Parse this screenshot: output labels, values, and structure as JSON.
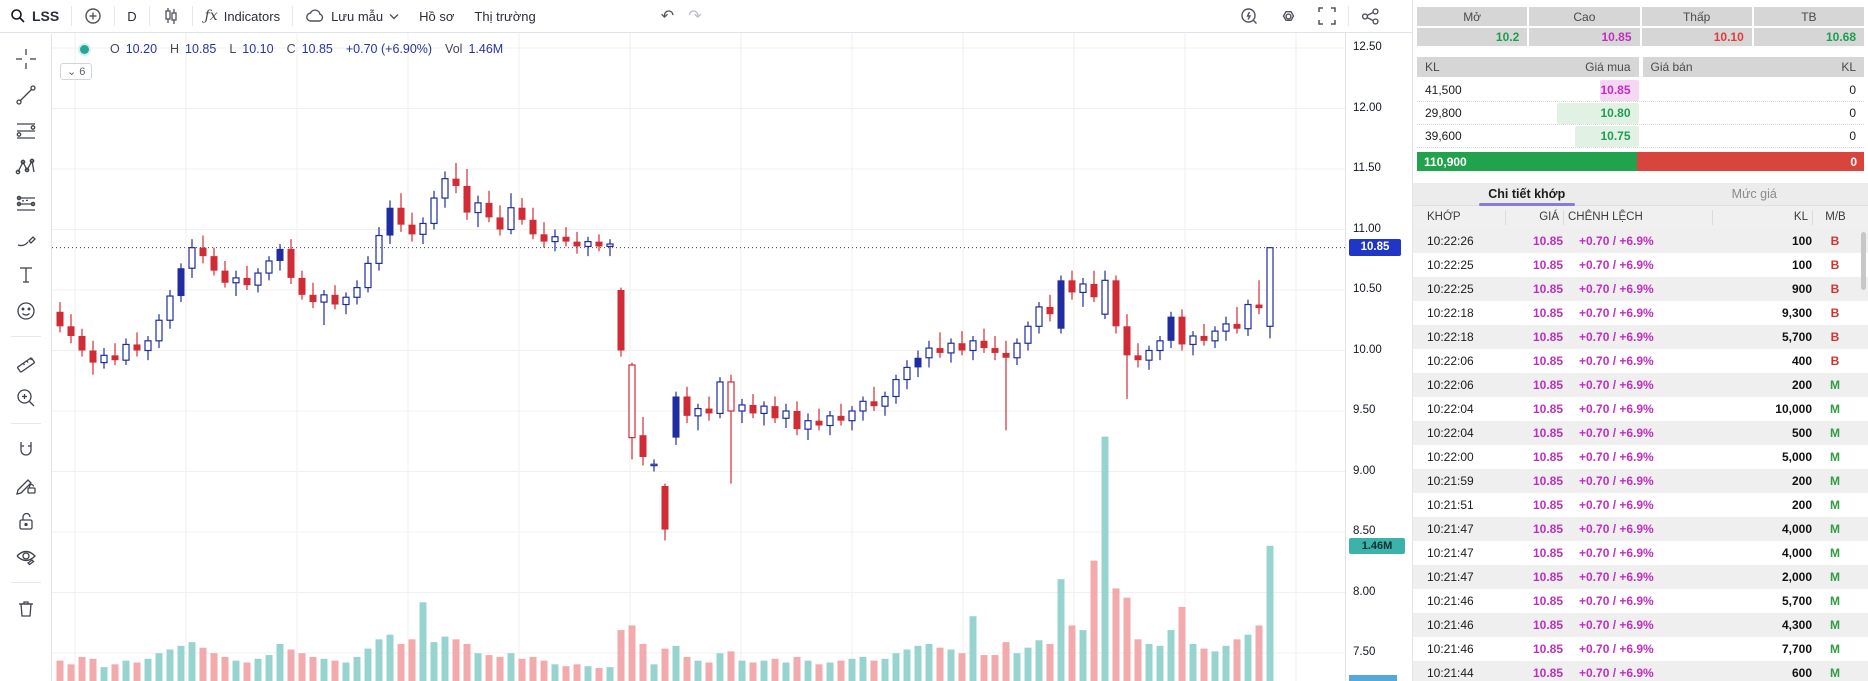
{
  "toolbar": {
    "symbol": "LSS",
    "interval": "D",
    "indicators_label": "Indicators",
    "template_label": "Lưu mẫu",
    "profile_label": "Hồ sơ",
    "market_label": "Thị trường",
    "undo_glyph": "↶",
    "redo_glyph": "↷"
  },
  "legend": {
    "open_label": "O",
    "open": "10.20",
    "high_label": "H",
    "high": "10.85",
    "low_label": "L",
    "low": "10.10",
    "close_label": "C",
    "close": "10.85",
    "change": "+0.70 (+6.90%)",
    "volume_label": "Vol",
    "volume": "1.46M",
    "collapsed_count": "6",
    "collapse_chevron": "⌄"
  },
  "drawbar_icons": [
    "crosshair",
    "trend-line",
    "fib-retracement",
    "xabcd-pattern",
    "projection",
    "brush",
    "text",
    "emoji",
    "ruler",
    "zoom-in",
    "magnet",
    "drawing-mode-lock",
    "lock",
    "hide-drawings",
    "remove-drawings"
  ],
  "price_axis": {
    "ticks": [
      "12.50",
      "12.00",
      "11.50",
      "11.00",
      "10.50",
      "10.00",
      "9.50",
      "9.00",
      "8.50",
      "8.00",
      "7.50"
    ],
    "last_price_badge": "10.85",
    "volume_badge": "1.46M"
  },
  "summary": {
    "columns": [
      {
        "label": "Mở",
        "value": "10.2",
        "state": "up"
      },
      {
        "label": "Cao",
        "value": "10.85",
        "state": "ceiling"
      },
      {
        "label": "Thấp",
        "value": "10.10",
        "state": "down"
      },
      {
        "label": "TB",
        "value": "10.68",
        "state": "up"
      }
    ]
  },
  "order_book": {
    "headers": [
      "KL",
      "Giá mua",
      "Giá bán",
      "KL"
    ],
    "bids": [
      {
        "volume": "41,500",
        "price": "10.85",
        "state": "ceiling"
      },
      {
        "volume": "29,800",
        "price": "10.80",
        "state": "up"
      },
      {
        "volume": "39,600",
        "price": "10.75",
        "state": "up"
      }
    ],
    "asks": [
      {
        "price": "",
        "volume": "0"
      },
      {
        "price": "",
        "volume": "0"
      },
      {
        "price": "",
        "volume": "0"
      }
    ],
    "total_bid": "110,900",
    "total_ask": "0"
  },
  "tabs": {
    "trade_detail": "Chi tiết khớp",
    "price_level": "Mức giá"
  },
  "trades": {
    "headers": [
      "KHỚP",
      "GIÁ",
      "CHÊNH LỆCH",
      "KL",
      "M/B"
    ],
    "rows": [
      {
        "time": "10:22:26",
        "price": "10.85",
        "change": "+0.70 / +6.9%",
        "volume": "100",
        "side": "B"
      },
      {
        "time": "10:22:25",
        "price": "10.85",
        "change": "+0.70 / +6.9%",
        "volume": "100",
        "side": "B"
      },
      {
        "time": "10:22:25",
        "price": "10.85",
        "change": "+0.70 / +6.9%",
        "volume": "900",
        "side": "B"
      },
      {
        "time": "10:22:18",
        "price": "10.85",
        "change": "+0.70 / +6.9%",
        "volume": "9,300",
        "side": "B"
      },
      {
        "time": "10:22:18",
        "price": "10.85",
        "change": "+0.70 / +6.9%",
        "volume": "5,700",
        "side": "B"
      },
      {
        "time": "10:22:06",
        "price": "10.85",
        "change": "+0.70 / +6.9%",
        "volume": "400",
        "side": "B"
      },
      {
        "time": "10:22:06",
        "price": "10.85",
        "change": "+0.70 / +6.9%",
        "volume": "200",
        "side": "M"
      },
      {
        "time": "10:22:04",
        "price": "10.85",
        "change": "+0.70 / +6.9%",
        "volume": "10,000",
        "side": "M"
      },
      {
        "time": "10:22:04",
        "price": "10.85",
        "change": "+0.70 / +6.9%",
        "volume": "500",
        "side": "M"
      },
      {
        "time": "10:22:00",
        "price": "10.85",
        "change": "+0.70 / +6.9%",
        "volume": "5,000",
        "side": "M"
      },
      {
        "time": "10:21:59",
        "price": "10.85",
        "change": "+0.70 / +6.9%",
        "volume": "200",
        "side": "M"
      },
      {
        "time": "10:21:51",
        "price": "10.85",
        "change": "+0.70 / +6.9%",
        "volume": "200",
        "side": "M"
      },
      {
        "time": "10:21:47",
        "price": "10.85",
        "change": "+0.70 / +6.9%",
        "volume": "4,000",
        "side": "M"
      },
      {
        "time": "10:21:47",
        "price": "10.85",
        "change": "+0.70 / +6.9%",
        "volume": "4,000",
        "side": "M"
      },
      {
        "time": "10:21:47",
        "price": "10.85",
        "change": "+0.70 / +6.9%",
        "volume": "2,000",
        "side": "M"
      },
      {
        "time": "10:21:46",
        "price": "10.85",
        "change": "+0.70 / +6.9%",
        "volume": "5,700",
        "side": "M"
      },
      {
        "time": "10:21:46",
        "price": "10.85",
        "change": "+0.70 / +6.9%",
        "volume": "4,300",
        "side": "M"
      },
      {
        "time": "10:21:46",
        "price": "10.85",
        "change": "+0.70 / +6.9%",
        "volume": "7,700",
        "side": "M"
      },
      {
        "time": "10:21:44",
        "price": "10.85",
        "change": "+0.70 / +6.9%",
        "volume": "600",
        "side": "M"
      }
    ]
  },
  "colors": {
    "candle_up": "#202da0",
    "candle_down": "#d12b35",
    "volume_up": "#8fd0cb",
    "volume_down": "#f2a3a6",
    "price_badge": "#1f36c7",
    "volume_badge_bg": "#3cb3aa",
    "volume_badge_text": "#0e2f33",
    "ceiling_magenta": "#c02ec0",
    "up_green": "#1f9d50",
    "down_red": "#e23b3b",
    "buy_red": "#d0342c",
    "sell_green": "#2f9e44",
    "depth_bid": "#21a24d",
    "depth_ask": "#d8453c",
    "grid": "#f0f0f0",
    "vgrid": "#f3efec",
    "last_price_line": "#40444d"
  },
  "chart_data": {
    "type": "candlestick+volume",
    "title": "LSS daily price chart with volume",
    "interval": "D",
    "price_axis_range": [
      7.5,
      12.5
    ],
    "price_ticks": [
      12.5,
      12.0,
      11.5,
      11.0,
      10.5,
      10.0,
      9.5,
      9.0,
      8.5,
      8.0,
      7.5
    ],
    "last_price": 10.85,
    "last_volume": 1.46,
    "volume_unit": "M shares",
    "volume_max": 2.7,
    "bar_spacing": 11,
    "grid": true,
    "candles_format": "[open, high, low, close, volume_M, solid_body]",
    "candles": [
      [
        10.32,
        10.4,
        10.15,
        10.2,
        0.22,
        1
      ],
      [
        10.2,
        10.3,
        10.06,
        10.12,
        0.18,
        1
      ],
      [
        10.12,
        10.18,
        9.95,
        10.0,
        0.26,
        1
      ],
      [
        10.0,
        10.08,
        9.8,
        9.9,
        0.24,
        1
      ],
      [
        9.9,
        10.02,
        9.85,
        9.96,
        0.15,
        0
      ],
      [
        9.96,
        10.06,
        9.88,
        9.92,
        0.18,
        1
      ],
      [
        9.92,
        10.1,
        9.88,
        10.05,
        0.22,
        0
      ],
      [
        10.05,
        10.15,
        9.95,
        10.0,
        0.2,
        1
      ],
      [
        10.0,
        10.12,
        9.92,
        10.08,
        0.24,
        0
      ],
      [
        10.08,
        10.3,
        10.02,
        10.25,
        0.3,
        0
      ],
      [
        10.25,
        10.5,
        10.18,
        10.45,
        0.34,
        0
      ],
      [
        10.45,
        10.72,
        10.4,
        10.68,
        0.38,
        1
      ],
      [
        10.68,
        10.92,
        10.6,
        10.85,
        0.42,
        0
      ],
      [
        10.85,
        10.95,
        10.72,
        10.78,
        0.36,
        1
      ],
      [
        10.78,
        10.85,
        10.62,
        10.66,
        0.3,
        1
      ],
      [
        10.66,
        10.74,
        10.52,
        10.56,
        0.26,
        1
      ],
      [
        10.56,
        10.66,
        10.45,
        10.6,
        0.22,
        0
      ],
      [
        10.6,
        10.7,
        10.5,
        10.54,
        0.2,
        1
      ],
      [
        10.54,
        10.68,
        10.48,
        10.64,
        0.24,
        0
      ],
      [
        10.64,
        10.78,
        10.58,
        10.74,
        0.28,
        0
      ],
      [
        10.74,
        10.88,
        10.66,
        10.84,
        0.4,
        1
      ],
      [
        10.84,
        10.92,
        10.55,
        10.6,
        0.34,
        1
      ],
      [
        10.6,
        10.66,
        10.42,
        10.46,
        0.3,
        1
      ],
      [
        10.46,
        10.56,
        10.35,
        10.4,
        0.26,
        1
      ],
      [
        10.4,
        10.5,
        10.21,
        10.46,
        0.24,
        0
      ],
      [
        10.46,
        10.54,
        10.34,
        10.38,
        0.22,
        1
      ],
      [
        10.38,
        10.48,
        10.3,
        10.44,
        0.2,
        0
      ],
      [
        10.44,
        10.58,
        10.38,
        10.52,
        0.26,
        0
      ],
      [
        10.52,
        10.78,
        10.48,
        10.72,
        0.35,
        0
      ],
      [
        10.72,
        11.02,
        10.66,
        10.95,
        0.45,
        0
      ],
      [
        10.95,
        11.24,
        10.88,
        11.18,
        0.5,
        1
      ],
      [
        11.18,
        11.3,
        10.98,
        11.04,
        0.4,
        1
      ],
      [
        11.04,
        11.14,
        10.9,
        10.96,
        0.45,
        1
      ],
      [
        10.96,
        11.1,
        10.88,
        11.05,
        0.85,
        0
      ],
      [
        11.05,
        11.32,
        11.0,
        11.26,
        0.42,
        0
      ],
      [
        11.26,
        11.48,
        11.18,
        11.42,
        0.48,
        0
      ],
      [
        11.42,
        11.55,
        11.3,
        11.36,
        0.45,
        1
      ],
      [
        11.36,
        11.5,
        11.08,
        11.14,
        0.4,
        1
      ],
      [
        11.14,
        11.28,
        11.02,
        11.22,
        0.3,
        0
      ],
      [
        11.22,
        11.32,
        11.06,
        11.1,
        0.28,
        1
      ],
      [
        11.1,
        11.2,
        10.95,
        11.0,
        0.26,
        1
      ],
      [
        11.0,
        11.3,
        10.96,
        11.18,
        0.3,
        0
      ],
      [
        11.18,
        11.26,
        11.04,
        11.08,
        0.24,
        1
      ],
      [
        11.08,
        11.18,
        10.92,
        10.96,
        0.26,
        1
      ],
      [
        10.96,
        11.06,
        10.85,
        10.9,
        0.22,
        1
      ],
      [
        10.9,
        11.0,
        10.82,
        10.94,
        0.18,
        0
      ],
      [
        10.94,
        11.02,
        10.86,
        10.9,
        0.16,
        1
      ],
      [
        10.9,
        10.98,
        10.8,
        10.86,
        0.18,
        1
      ],
      [
        10.86,
        10.94,
        10.78,
        10.9,
        0.16,
        0
      ],
      [
        10.9,
        10.96,
        10.82,
        10.86,
        0.14,
        1
      ],
      [
        10.86,
        10.92,
        10.78,
        10.88,
        0.15,
        0
      ],
      [
        10.5,
        10.52,
        9.95,
        10.0,
        0.55,
        1
      ],
      [
        9.88,
        9.9,
        9.1,
        9.28,
        0.6,
        0
      ],
      [
        9.3,
        9.45,
        9.05,
        9.12,
        0.4,
        1
      ],
      [
        9.05,
        9.1,
        9.0,
        9.06,
        0.18,
        0
      ],
      [
        8.88,
        8.9,
        8.43,
        8.52,
        0.35,
        1
      ],
      [
        9.28,
        9.66,
        9.22,
        9.62,
        0.38,
        1
      ],
      [
        9.62,
        9.7,
        9.4,
        9.46,
        0.26,
        1
      ],
      [
        9.46,
        9.56,
        9.34,
        9.52,
        0.22,
        0
      ],
      [
        9.52,
        9.62,
        9.42,
        9.48,
        0.2,
        1
      ],
      [
        9.48,
        9.78,
        9.44,
        9.74,
        0.3,
        0
      ],
      [
        9.74,
        9.8,
        8.9,
        9.5,
        0.32,
        0
      ],
      [
        9.5,
        9.6,
        9.4,
        9.55,
        0.22,
        0
      ],
      [
        9.55,
        9.64,
        9.44,
        9.48,
        0.2,
        1
      ],
      [
        9.48,
        9.58,
        9.38,
        9.54,
        0.22,
        0
      ],
      [
        9.54,
        9.62,
        9.4,
        9.44,
        0.24,
        1
      ],
      [
        9.44,
        9.56,
        9.36,
        9.5,
        0.2,
        0
      ],
      [
        9.5,
        9.58,
        9.3,
        9.35,
        0.26,
        1
      ],
      [
        9.35,
        9.48,
        9.26,
        9.42,
        0.22,
        0
      ],
      [
        9.42,
        9.52,
        9.34,
        9.38,
        0.18,
        1
      ],
      [
        9.38,
        9.5,
        9.3,
        9.46,
        0.2,
        0
      ],
      [
        9.46,
        9.56,
        9.38,
        9.42,
        0.22,
        1
      ],
      [
        9.42,
        9.54,
        9.34,
        9.5,
        0.24,
        0
      ],
      [
        9.5,
        9.62,
        9.42,
        9.58,
        0.26,
        0
      ],
      [
        9.58,
        9.7,
        9.5,
        9.54,
        0.22,
        1
      ],
      [
        9.54,
        9.66,
        9.46,
        9.62,
        0.24,
        0
      ],
      [
        9.62,
        9.8,
        9.56,
        9.76,
        0.3,
        0
      ],
      [
        9.76,
        9.92,
        9.68,
        9.86,
        0.34,
        0
      ],
      [
        9.86,
        10.0,
        9.78,
        9.94,
        0.38,
        1
      ],
      [
        9.94,
        10.08,
        9.86,
        10.02,
        0.4,
        0
      ],
      [
        10.02,
        10.15,
        9.94,
        9.98,
        0.36,
        1
      ],
      [
        9.98,
        10.1,
        9.9,
        10.06,
        0.34,
        0
      ],
      [
        10.06,
        10.16,
        9.96,
        10.0,
        0.3,
        1
      ],
      [
        10.0,
        10.12,
        9.92,
        10.08,
        0.7,
        0
      ],
      [
        10.08,
        10.18,
        9.98,
        10.02,
        0.28,
        1
      ],
      [
        10.02,
        10.12,
        9.92,
        9.98,
        0.28,
        1
      ],
      [
        9.98,
        10.08,
        9.34,
        9.94,
        0.42,
        1
      ],
      [
        9.94,
        10.1,
        9.88,
        10.06,
        0.3,
        0
      ],
      [
        10.06,
        10.24,
        10.0,
        10.2,
        0.36,
        0
      ],
      [
        10.2,
        10.4,
        10.14,
        10.36,
        0.44,
        0
      ],
      [
        10.36,
        10.46,
        10.24,
        10.3,
        0.4,
        1
      ],
      [
        10.18,
        10.62,
        10.14,
        10.58,
        1.1,
        1
      ],
      [
        10.58,
        10.66,
        10.42,
        10.48,
        0.6,
        1
      ],
      [
        10.48,
        10.6,
        10.36,
        10.55,
        0.55,
        0
      ],
      [
        10.55,
        10.66,
        10.4,
        10.44,
        1.3,
        1
      ],
      [
        10.3,
        10.66,
        10.26,
        10.58,
        2.64,
        0
      ],
      [
        10.58,
        10.62,
        10.14,
        10.2,
        1.0,
        1
      ],
      [
        10.2,
        10.3,
        9.6,
        9.96,
        0.9,
        1
      ],
      [
        9.96,
        10.06,
        9.86,
        9.92,
        0.45,
        1
      ],
      [
        9.92,
        10.04,
        9.84,
        10.0,
        0.4,
        0
      ],
      [
        10.0,
        10.12,
        9.92,
        10.08,
        0.38,
        0
      ],
      [
        10.08,
        10.32,
        10.02,
        10.28,
        0.55,
        1
      ],
      [
        10.28,
        10.34,
        10.0,
        10.05,
        0.8,
        1
      ],
      [
        10.05,
        10.16,
        9.96,
        10.12,
        0.4,
        0
      ],
      [
        10.12,
        10.22,
        10.04,
        10.08,
        0.35,
        1
      ],
      [
        10.08,
        10.2,
        10.02,
        10.16,
        0.32,
        0
      ],
      [
        10.16,
        10.28,
        10.08,
        10.22,
        0.38,
        0
      ],
      [
        10.22,
        10.36,
        10.14,
        10.18,
        0.45,
        1
      ],
      [
        10.18,
        10.42,
        10.12,
        10.38,
        0.5,
        0
      ],
      [
        10.38,
        10.58,
        10.3,
        10.35,
        0.6,
        1
      ],
      [
        10.2,
        10.85,
        10.1,
        10.85,
        1.46,
        0
      ]
    ]
  }
}
